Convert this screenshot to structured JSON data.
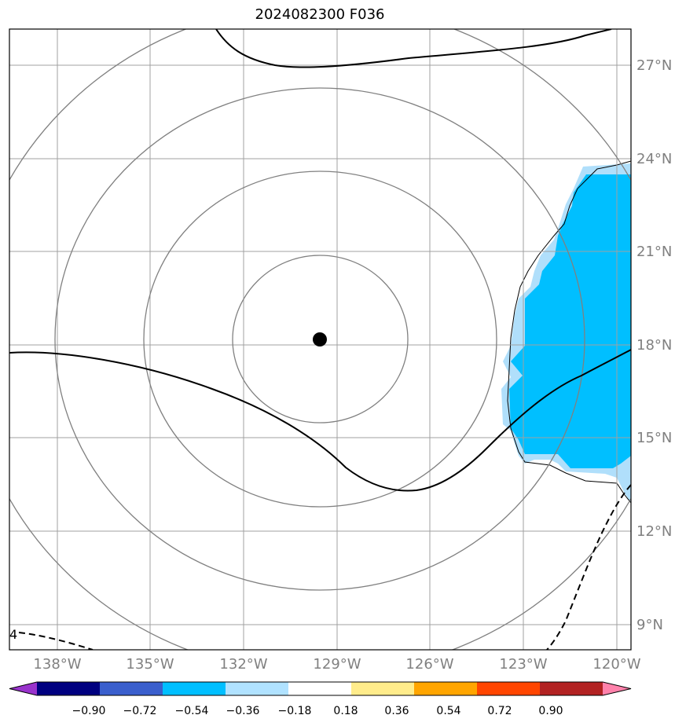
{
  "title": "2024082300 F036",
  "map": {
    "lat_labels": [
      "27°N",
      "24°N",
      "21°N",
      "18°N",
      "15°N",
      "12°N",
      "9°N"
    ],
    "lon_labels": [
      "138°W",
      "135°W",
      "132°W",
      "129°W",
      "126°W",
      "123°W",
      "120°W"
    ],
    "contour_label": "4",
    "center_marker": "storm-center-dot",
    "range_rings": 4,
    "colors": {
      "grid": "#a0a0a0",
      "rings": "#808080",
      "fill_light": "#b0dffb",
      "fill_main": "#00bfff",
      "contour": "#000000"
    }
  },
  "colorbar": {
    "ticks": [
      "−0.90",
      "−0.72",
      "−0.54",
      "−0.36",
      "−0.18",
      "0.18",
      "0.36",
      "0.54",
      "0.72",
      "0.90"
    ],
    "colors": [
      "#9933cc",
      "#000080",
      "#3a5fcd",
      "#00bfff",
      "#b0e2ff",
      "#ffffff",
      "#ffec8b",
      "#ffa500",
      "#ff4500",
      "#b22222",
      "#ff82ab"
    ]
  }
}
